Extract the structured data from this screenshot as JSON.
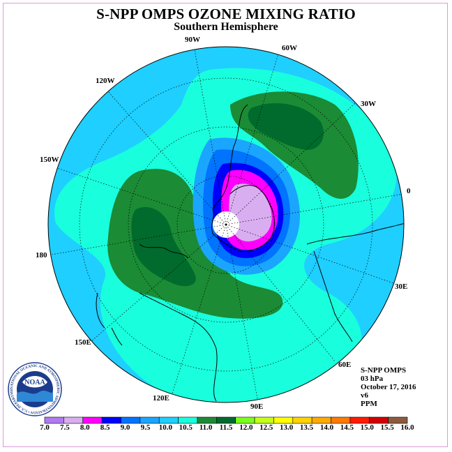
{
  "title": "S-NPP OMPS OZONE MIXING RATIO",
  "subtitle": "Southern Hemisphere",
  "lon_labels": [
    "90W",
    "60W",
    "120W",
    "30W",
    "150W",
    "0",
    "180",
    "30E",
    "150E",
    "60E",
    "120E",
    "90E"
  ],
  "info": {
    "instrument": "S-NPP OMPS",
    "level": "03 hPa",
    "date": "October 17, 2016",
    "version": "v6",
    "units": "PPM"
  },
  "logo_text": "NOAA",
  "logo_ring_text": "NATIONAL OCEANIC AND ATMOSPHERIC ADMINISTRATION • U.S. DEPARTMENT OF COMMERCE •",
  "colorbar": {
    "labels": [
      "7.0",
      "7.5",
      "8.0",
      "8.5",
      "9.0",
      "9.5",
      "10.0",
      "10.5",
      "11.0",
      "11.5",
      "12.0",
      "12.5",
      "13.0",
      "13.5",
      "14.0",
      "14.5",
      "15.0",
      "15.5",
      "16.0"
    ],
    "colors": [
      "#b07af0",
      "#d9aef0",
      "#ff00ff",
      "#0000ff",
      "#0073ff",
      "#1aa6ff",
      "#1ecfff",
      "#19ffdd",
      "#1b8b35",
      "#006b2c",
      "#7bff1a",
      "#c3ff1a",
      "#ffff00",
      "#ffd200",
      "#ffaa00",
      "#ff7a00",
      "#ff1a00",
      "#d40000",
      "#8c5a3c"
    ]
  },
  "colors": {
    "ocean_blue": "#1ecfff",
    "teal": "#19ffdd",
    "green": "#1b8b35",
    "dark_green": "#006b2c",
    "mid_blue": "#1aa6ff",
    "blue": "#0073ff",
    "deep_blue": "#0000ff",
    "magenta": "#ff00ff",
    "lavender": "#d9aef0"
  }
}
